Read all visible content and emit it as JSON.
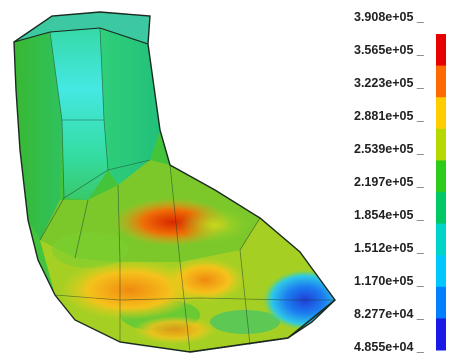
{
  "chart_data": {
    "type": "heatmap",
    "title": "",
    "colorbar": {
      "tick_labels": [
        "3.908e+05",
        "3.565e+05",
        "3.223e+05",
        "2.881e+05",
        "2.539e+05",
        "2.197e+05",
        "1.854e+05",
        "1.512e+05",
        "1.170e+05",
        "8.277e+04",
        "4.855e+04"
      ],
      "tick_values": [
        390800,
        356500,
        322300,
        288100,
        253900,
        219700,
        185400,
        151200,
        117000,
        82770,
        48550
      ],
      "colors_top_to_bottom": [
        "#e60000",
        "#ff6a00",
        "#ffcc00",
        "#b4d800",
        "#2ecc1a",
        "#00c864",
        "#00d4c8",
        "#00c8ff",
        "#0080ff",
        "#1a1ae6"
      ],
      "range": [
        48550,
        390800
      ]
    },
    "field_hotspots": [
      {
        "location": "upper vertical leg",
        "color": "cyan"
      },
      {
        "location": "inner bend",
        "color": "red"
      },
      {
        "location": "lower leg middle",
        "color": "orange"
      },
      {
        "location": "tip",
        "color": "blue"
      }
    ]
  }
}
